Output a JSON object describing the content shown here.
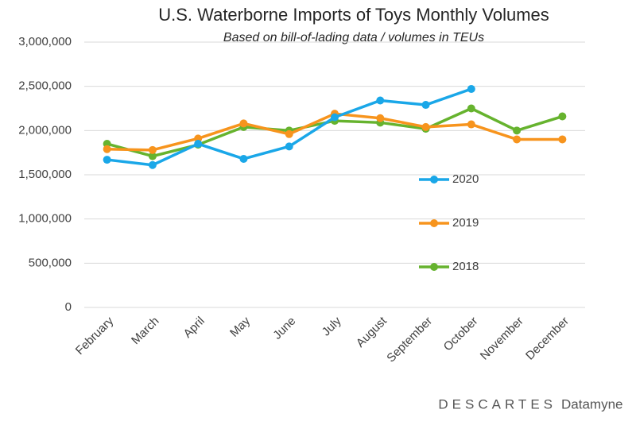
{
  "chart_data": {
    "type": "line",
    "title": "U.S. Waterborne Imports of Toys Monthly Volumes",
    "subtitle": "Based on bill-of-lading data / volumes in TEUs",
    "categories": [
      "February",
      "March",
      "April",
      "May",
      "June",
      "July",
      "August",
      "September",
      "October",
      "November",
      "December"
    ],
    "series": [
      {
        "name": "2020",
        "color": "#1aa7e8",
        "values": [
          1670000,
          1610000,
          1850000,
          1680000,
          1820000,
          2150000,
          2340000,
          2290000,
          2470000,
          null,
          null
        ]
      },
      {
        "name": "2019",
        "color": "#f7941d",
        "values": [
          1790000,
          1780000,
          1910000,
          2080000,
          1960000,
          2190000,
          2140000,
          2040000,
          2070000,
          1900000,
          1900000
        ]
      },
      {
        "name": "2018",
        "color": "#66b32e",
        "values": [
          1850000,
          1710000,
          1840000,
          2040000,
          2000000,
          2110000,
          2090000,
          2020000,
          2250000,
          2000000,
          2160000
        ]
      }
    ],
    "ylim": [
      0,
      3000000
    ],
    "yticks": [
      0,
      {
        "value": 500000,
        "label": "500,000"
      },
      {
        "value": 1000000,
        "label": "1,000,000"
      },
      {
        "value": 1500000,
        "label": "1,500,000"
      },
      {
        "value": 2000000,
        "label": "2,000,000"
      },
      {
        "value": 2500000,
        "label": "2,500,000"
      },
      {
        "value": 3000000,
        "label": "3,000,000"
      }
    ],
    "grid": true,
    "legend_position": "right"
  },
  "footer": {
    "brand": "DESCARTES",
    "product": "Datamyne"
  }
}
